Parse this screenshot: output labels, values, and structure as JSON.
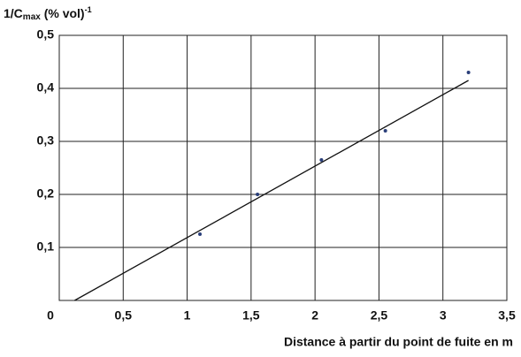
{
  "chart_data": {
    "type": "scatter",
    "ylabel_parts": [
      "1/C",
      "max",
      " (% vol)",
      "-1"
    ],
    "xlabel": "Distance à partir du point de fuite en m",
    "xlim": [
      0,
      3.5
    ],
    "ylim": [
      0,
      0.5
    ],
    "xticks": [
      0,
      {
        "value": 0.5,
        "label": "0,5"
      },
      1,
      {
        "value": 1.5,
        "label": "1,5"
      },
      2,
      {
        "value": 2.5,
        "label": "2,5"
      },
      3,
      {
        "value": 3.5,
        "label": "3,5"
      }
    ],
    "yticks": [
      {
        "value": 0.1,
        "label": "0,1"
      },
      {
        "value": 0.2,
        "label": "0,2"
      },
      {
        "value": 0.3,
        "label": "0,3"
      },
      {
        "value": 0.4,
        "label": "0,4"
      },
      {
        "value": 0.5,
        "label": "0,5"
      }
    ],
    "grid": true,
    "x": [
      1.1,
      1.55,
      2.05,
      2.55,
      3.2
    ],
    "values": [
      0.125,
      0.2,
      0.265,
      0.32,
      0.43
    ],
    "color": "#2a3f7a",
    "fit_line": {
      "x": [
        0.12,
        3.2
      ],
      "y": [
        0,
        0.415
      ],
      "color": "#111"
    }
  }
}
